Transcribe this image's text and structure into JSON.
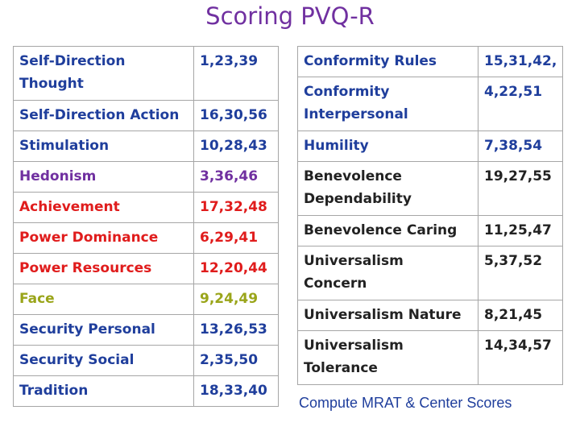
{
  "title": "Scoring PVQ-R",
  "colors": {
    "title": "#7030a0",
    "blue": "#1f3e9c",
    "purple": "#7030a0",
    "red": "#e01c1c",
    "olive": "#9aa51a",
    "black": "#222222"
  },
  "left_table": [
    {
      "name": "Self-Direction Thought",
      "items": "1,23,39",
      "color": "blue"
    },
    {
      "name": "Self-Direction Action",
      "items": "16,30,56",
      "color": "blue"
    },
    {
      "name": "Stimulation",
      "items": "10,28,43",
      "color": "blue"
    },
    {
      "name": "Hedonism",
      "items": "3,36,46",
      "color": "purple"
    },
    {
      "name": "Achievement",
      "items": "17,32,48",
      "color": "red"
    },
    {
      "name": "Power Dominance",
      "items": "6,29,41",
      "color": "red"
    },
    {
      "name": "Power Resources",
      "items": "12,20,44",
      "color": "red"
    },
    {
      "name": "Face",
      "items": "9,24,49",
      "color": "olive"
    },
    {
      "name": "Security Personal",
      "items": "13,26,53",
      "color": "blue"
    },
    {
      "name": "Security Social",
      "items": "2,35,50",
      "color": "blue"
    },
    {
      "name": "Tradition",
      "items": "18,33,40",
      "color": "blue"
    }
  ],
  "right_table": [
    {
      "name": "Conformity Rules",
      "items": "15,31,42,",
      "color": "blue"
    },
    {
      "name": "Conformity Interpersonal",
      "items": "4,22,51",
      "color": "blue"
    },
    {
      "name": "Humility",
      "items": "7,38,54",
      "color": "blue"
    },
    {
      "name": "Benevolence Dependability",
      "items": "19,27,55",
      "color": "black"
    },
    {
      "name": "Benevolence Caring",
      "items": "11,25,47",
      "color": "black"
    },
    {
      "name": "Universalism Concern",
      "items": "5,37,52",
      "color": "black"
    },
    {
      "name": "Universalism Nature",
      "items": "8,21,45",
      "color": "black"
    },
    {
      "name": "Universalism Tolerance",
      "items": "14,34,57",
      "color": "black"
    }
  ],
  "footer": "Compute MRAT & Center Scores"
}
